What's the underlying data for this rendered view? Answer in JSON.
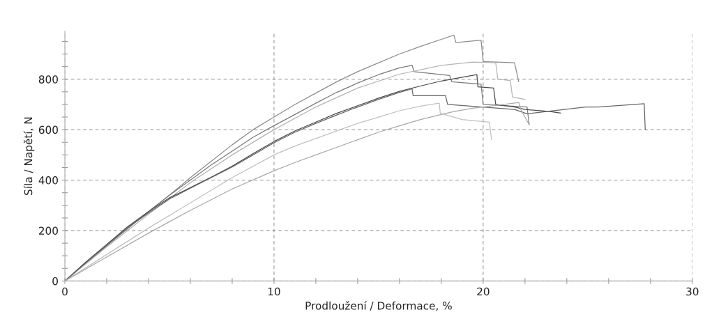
{
  "chart_data": {
    "type": "line",
    "xlabel": "Prodloužení / Deformace, %",
    "ylabel": "Síla / Napětí, N",
    "xlim": [
      0,
      30
    ],
    "ylim": [
      0,
      990
    ],
    "xticks": [
      0,
      {
        "value": 2,
        "label": null
      },
      {
        "value": 4,
        "label": null
      },
      {
        "value": 6,
        "label": null
      },
      {
        "value": 8,
        "label": null
      },
      10,
      {
        "value": 12,
        "label": null
      },
      {
        "value": 14,
        "label": null
      },
      {
        "value": 16,
        "label": null
      },
      {
        "value": 18,
        "label": null
      },
      20,
      {
        "value": 22,
        "label": null
      },
      {
        "value": 24,
        "label": null
      },
      {
        "value": 26,
        "label": null
      },
      {
        "value": 28,
        "label": null
      },
      30
    ],
    "yticks": [
      0,
      {
        "value": 50,
        "label": null
      },
      {
        "value": 100,
        "label": null
      },
      {
        "value": 150,
        "label": null
      },
      200,
      {
        "value": 250,
        "label": null
      },
      {
        "value": 300,
        "label": null
      },
      {
        "value": 350,
        "label": null
      },
      400,
      {
        "value": 450,
        "label": null
      },
      {
        "value": 500,
        "label": null
      },
      {
        "value": 550,
        "label": null
      },
      600,
      {
        "value": 650,
        "label": null
      },
      {
        "value": 700,
        "label": null
      },
      {
        "value": 750,
        "label": null
      },
      800,
      {
        "value": 850,
        "label": null
      },
      {
        "value": 900,
        "label": null
      },
      {
        "value": 950,
        "label": null
      }
    ],
    "grid": true,
    "marker": "none",
    "line_style": "solid",
    "series": [
      {
        "color": "#8c8c8c",
        "x": [
          0,
          1,
          2,
          3,
          4,
          5,
          6,
          7,
          8,
          9,
          10,
          11,
          12,
          13,
          14,
          15,
          16,
          17,
          18,
          18.6,
          18.7,
          19.9,
          20.0,
          21.5,
          21.7
        ],
        "values": [
          0,
          70,
          140,
          207,
          275,
          340,
          410,
          475,
          540,
          600,
          650,
          700,
          745,
          790,
          830,
          865,
          900,
          930,
          958,
          975,
          945,
          955,
          870,
          865,
          790
        ]
      },
      {
        "color": "#7a7a7a",
        "x": [
          0,
          1,
          2,
          3,
          4,
          5,
          6,
          7,
          8,
          9,
          10,
          11,
          12,
          13,
          14,
          15,
          16,
          16.6,
          16.7,
          18.4,
          18.5,
          19.9,
          20.0,
          22.1,
          22.2
        ],
        "values": [
          0,
          70,
          140,
          210,
          275,
          340,
          400,
          460,
          515,
          570,
          616,
          660,
          705,
          748,
          785,
          818,
          845,
          855,
          830,
          815,
          790,
          780,
          700,
          690,
          620
        ]
      },
      {
        "color": "#b4b4b4",
        "x": [
          0,
          2,
          4,
          6,
          8,
          10,
          12,
          14,
          16,
          18,
          19.5,
          20.6,
          20.7,
          21.3,
          21.4,
          22.0
        ],
        "values": [
          0,
          135,
          265,
          390,
          500,
          600,
          690,
          765,
          820,
          855,
          868,
          865,
          800,
          795,
          730,
          720
        ]
      },
      {
        "color": "#4a4a4a",
        "x": [
          0,
          1,
          2,
          3,
          4,
          5,
          6,
          7,
          8,
          9,
          10,
          11,
          12,
          13,
          14,
          15,
          16,
          17,
          18,
          19,
          19.7,
          19.75,
          20.5,
          20.6,
          21.5,
          22.0,
          23.2,
          23.7
        ],
        "values": [
          0,
          75,
          145,
          215,
          275,
          330,
          370,
          412,
          455,
          505,
          553,
          595,
          630,
          665,
          695,
          725,
          752,
          773,
          793,
          808,
          818,
          770,
          765,
          700,
          690,
          680,
          672,
          666
        ]
      },
      {
        "color": "#666666",
        "x": [
          0,
          1,
          2,
          3,
          4,
          5,
          6,
          7,
          8,
          9,
          10,
          11,
          12,
          13,
          14,
          15,
          16,
          16.6,
          16.65,
          18.2,
          18.3,
          21.5,
          22.1,
          24.9,
          25.5,
          27.7,
          27.75
        ],
        "values": [
          0,
          72,
          142,
          212,
          270,
          325,
          368,
          410,
          452,
          500,
          548,
          590,
          625,
          658,
          690,
          720,
          748,
          762,
          735,
          735,
          700,
          680,
          663,
          690,
          690,
          703,
          600
        ]
      },
      {
        "color": "#c0c0c0",
        "x": [
          0,
          2,
          4,
          6,
          8,
          10,
          11,
          12,
          13,
          14,
          15,
          16,
          17,
          17.9,
          17.95,
          19.0,
          20.3,
          20.4
        ],
        "values": [
          0,
          105,
          210,
          310,
          410,
          500,
          535,
          565,
          595,
          625,
          650,
          675,
          693,
          705,
          665,
          640,
          630,
          560
        ]
      },
      {
        "color": "#a8a8a8",
        "x": [
          0,
          2,
          4,
          6,
          8,
          10,
          11,
          12,
          13,
          14,
          15,
          16,
          17,
          18,
          18.6,
          19.5,
          20.5,
          21.7,
          21.8,
          22.2
        ],
        "values": [
          0,
          95,
          190,
          280,
          365,
          437,
          470,
          500,
          530,
          560,
          590,
          615,
          640,
          660,
          672,
          685,
          695,
          708,
          680,
          620
        ]
      }
    ]
  }
}
